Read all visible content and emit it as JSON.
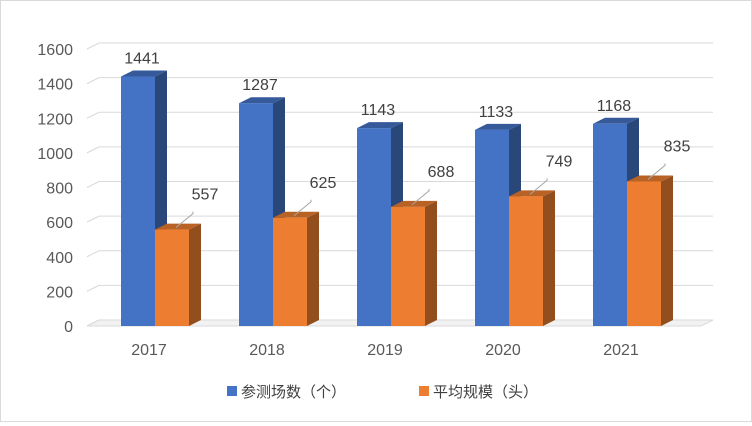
{
  "chart_data": {
    "type": "bar",
    "title": "",
    "xlabel": "",
    "ylabel": "",
    "categories": [
      "2017",
      "2018",
      "2019",
      "2020",
      "2021"
    ],
    "series": [
      {
        "name": "参测场数（个）",
        "values": [
          1441,
          1287,
          1143,
          1133,
          1168
        ],
        "color": "#4472c4"
      },
      {
        "name": "平均规模（头）",
        "values": [
          557,
          625,
          688,
          749,
          835
        ],
        "color": "#ed7d31"
      }
    ],
    "ylim": [
      0,
      1600
    ],
    "yticks": [
      "0",
      "200",
      "400",
      "600",
      "800",
      "1000",
      "1200",
      "1400",
      "1600"
    ],
    "grid": true,
    "legend_position": "bottom",
    "style": "3d"
  }
}
